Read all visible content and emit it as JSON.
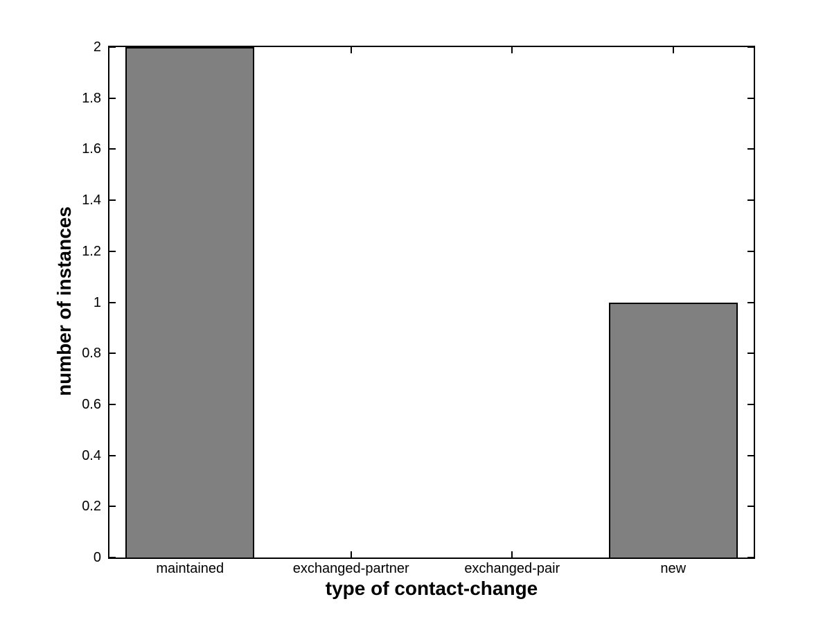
{
  "chart_data": {
    "type": "bar",
    "title": "",
    "xlabel": "type of contact-change",
    "ylabel": "number of instances",
    "categories": [
      "maintained",
      "exchanged-partner",
      "exchanged-pair",
      "new"
    ],
    "values": [
      2,
      0,
      0,
      1
    ],
    "ylim": [
      0,
      2
    ],
    "ytick_step": 0.2,
    "yticks": [
      "0",
      "0.2",
      "0.4",
      "0.6",
      "0.8",
      "1",
      "1.2",
      "1.4",
      "1.6",
      "1.8",
      "2"
    ],
    "xlim_units": [
      0.5,
      4.5
    ],
    "bar_width_fraction": 0.8,
    "grid": false,
    "legend": null,
    "colors": {
      "bar_fill": "#808080",
      "bar_edge": "#000000",
      "axis": "#000000",
      "text": "#000000",
      "background": "#ffffff"
    }
  }
}
